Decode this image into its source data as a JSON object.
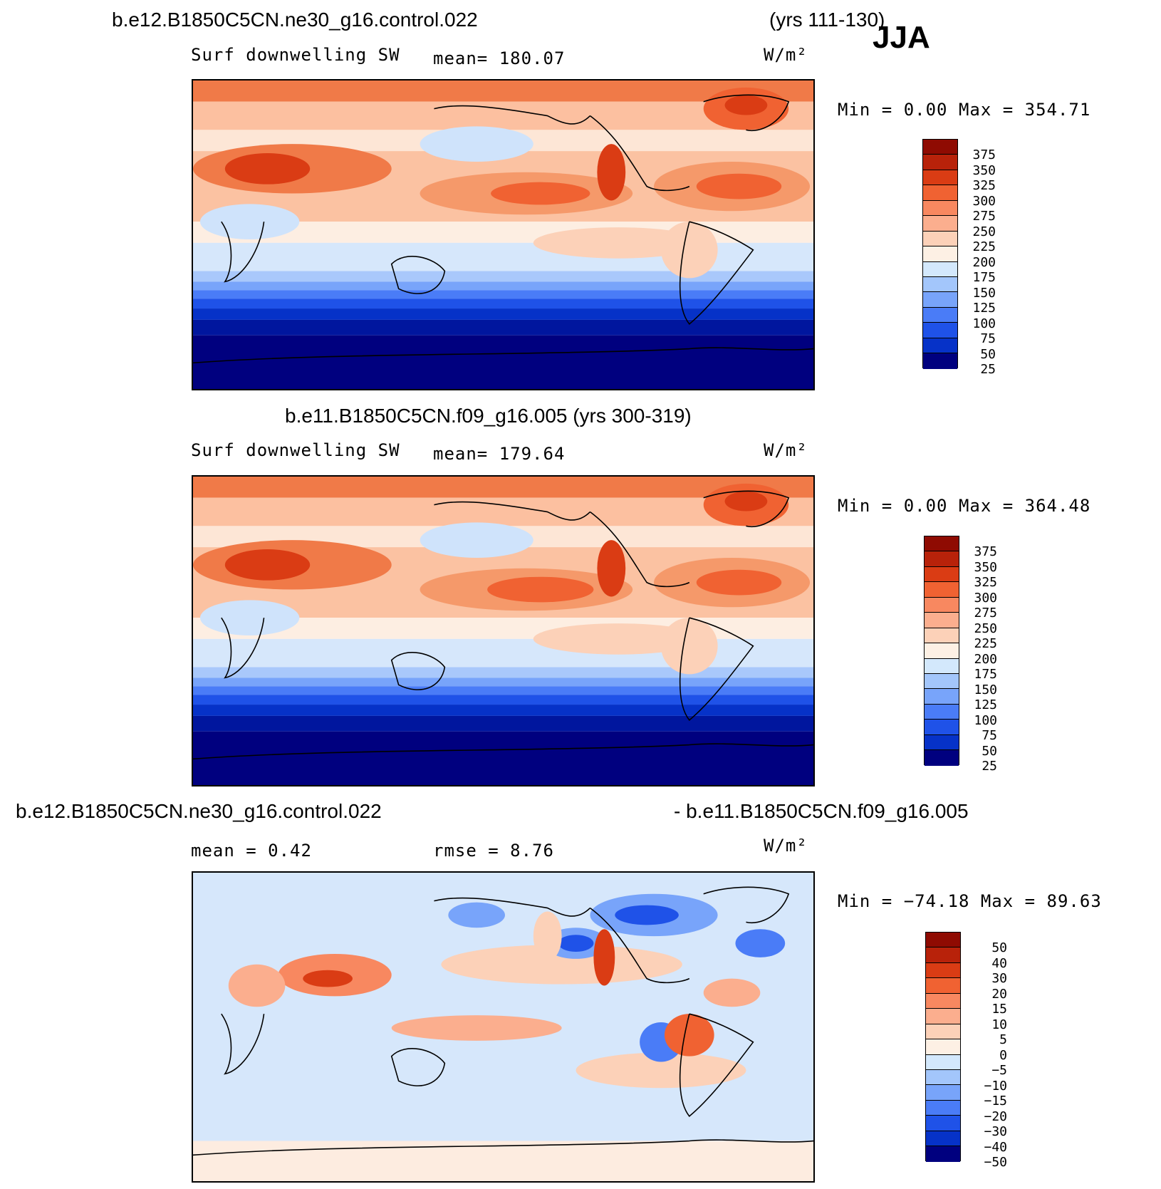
{
  "season": "JJA",
  "colors": {
    "abs_scale": [
      "#00007f",
      "#00169e",
      "#0632c8",
      "#1f52e8",
      "#4a7cf7",
      "#78a4fa",
      "#a3c6fb",
      "#d3e8fc",
      "#fdf0e4",
      "#fcd1b8",
      "#fbae8e",
      "#f88860",
      "#f06232",
      "#da3c14",
      "#b8220a",
      "#8f0b02"
    ],
    "diff_scale": [
      "#00007f",
      "#00169e",
      "#0632c8",
      "#1f52e8",
      "#4a7cf7",
      "#78a4fa",
      "#a3c6fb",
      "#d3e8fc",
      "#fdf0e4",
      "#fcd1b8",
      "#fbae8e",
      "#f88860",
      "#f06232",
      "#da3c14",
      "#b8220a",
      "#8f0b02"
    ]
  },
  "panels": [
    {
      "header_left": "b.e12.B1850C5CN.ne30_g16.control.022",
      "header_right": "(yrs 111-130)",
      "variable": "Surf downwelling SW",
      "stat": "mean= 180.07",
      "units": "W/m²",
      "minmax": "Min =     0.00 Max = 354.71",
      "colorbar_labels": [
        "375",
        "350",
        "325",
        "300",
        "275",
        "250",
        "225",
        "200",
        "175",
        "150",
        "125",
        "100",
        "75",
        "50",
        "25"
      ],
      "map_name": "surface-downwelling-sw-map-ne30"
    },
    {
      "header": "b.e11.B1850C5CN.f09_g16.005 (yrs 300-319)",
      "variable": "Surf downwelling SW",
      "stat": "mean= 179.64",
      "units": "W/m²",
      "minmax": "Min =     0.00 Max = 364.48",
      "colorbar_labels": [
        "375",
        "350",
        "325",
        "300",
        "275",
        "250",
        "225",
        "200",
        "175",
        "150",
        "125",
        "100",
        "75",
        "50",
        "25"
      ],
      "map_name": "surface-downwelling-sw-map-f09"
    },
    {
      "header_left": "b.e12.B1850C5CN.ne30_g16.control.022",
      "header_right": "- b.e11.B1850C5CN.f09_g16.005",
      "stat_mean": "mean =    0.42",
      "stat_rmse": "rmse =    8.76",
      "units": "W/m²",
      "minmax": "Min = −74.18 Max =   89.63",
      "colorbar_labels": [
        "50",
        "40",
        "30",
        "20",
        "15",
        "10",
        "5",
        "0",
        "−5",
        "−10",
        "−15",
        "−20",
        "−30",
        "−40",
        "−50"
      ],
      "map_name": "difference-map"
    }
  ]
}
